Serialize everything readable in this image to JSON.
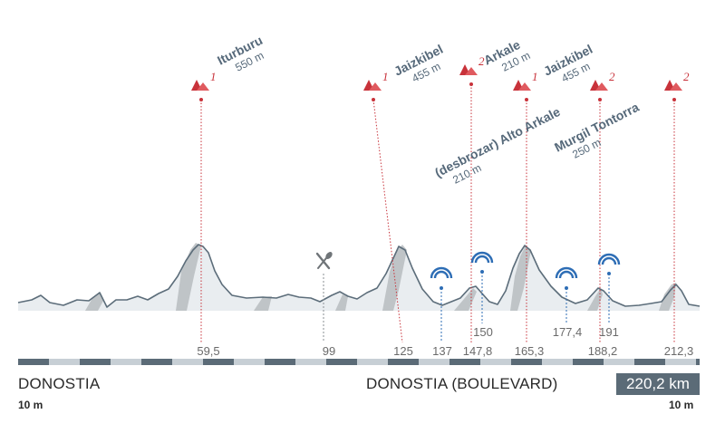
{
  "start": {
    "town": "DONOSTIA",
    "elevation": "10 m"
  },
  "finish": {
    "town": "DONOSTIA (BOULEVARD)",
    "elevation": "10 m"
  },
  "total_distance": "220,2 km",
  "climbs": [
    {
      "name": "Iturburu",
      "elevation": "550 m",
      "category": "1",
      "km": 59.5,
      "km_label": "59,5"
    },
    {
      "name": "Jaizkibel",
      "elevation": "455 m",
      "category": "1",
      "km": 125,
      "km_label": "125"
    },
    {
      "name": "Arkale",
      "elevation": "210 m",
      "category": "2",
      "km": 147.8,
      "km_label": "147,8"
    },
    {
      "name": "Jaizkibel",
      "elevation": "455 m",
      "category": "1",
      "km": 165.3,
      "km_label": "165,3"
    },
    {
      "name": "(desbrozar) Alto Arkale",
      "elevation": "210 m",
      "category": "2",
      "km": 188.2,
      "km_label": "188,2"
    },
    {
      "name": "Murgil Tontorra",
      "elevation": "250 m",
      "category": "2",
      "km": 212.3,
      "km_label": "212,3"
    }
  ],
  "feed_zone": {
    "km": 99,
    "km_label": "99",
    "icon": "fork-knife-icon"
  },
  "sprints": [
    {
      "km": 137,
      "km_label": "137",
      "icon": "sprint-arch-icon"
    },
    {
      "km": 150,
      "km_label": "150",
      "icon": "sprint-arch-icon"
    },
    {
      "km": 177.4,
      "km_label": "177,4",
      "icon": "sprint-arch-icon"
    },
    {
      "km": 191,
      "km_label": "191",
      "icon": "sprint-arch-icon"
    }
  ],
  "colors": {
    "profile_fill": "#e9edf0",
    "profile_line": "#5c6d7a",
    "shadow": "#b7bcc0",
    "climb_marker": "#c8323a",
    "sprint_marker": "#2d6db5",
    "text": "#56697a",
    "scale_dark": "#5b6b77",
    "scale_light": "#c7cfd5"
  }
}
